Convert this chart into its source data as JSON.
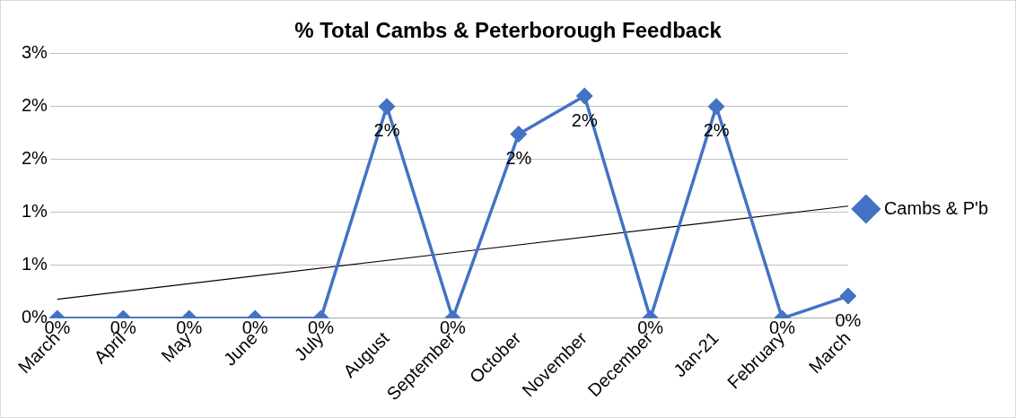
{
  "chart_data": {
    "type": "line",
    "title": "% Total Cambs & Peterborough Feedback",
    "categories": [
      "March",
      "April",
      "May",
      "June",
      "July",
      "August",
      "September",
      "October",
      "November",
      "December",
      "Jan-21",
      "February",
      "March"
    ],
    "series": [
      {
        "name": "Cambs & P'b",
        "color": "#4472c4",
        "marker": "diamond",
        "values": [
          0,
          0,
          0,
          0,
          0,
          2.0,
          0,
          1.74,
          2.1,
          0,
          2.0,
          0,
          0.21
        ],
        "value_labels": [
          "0%",
          "0%",
          "0%",
          "0%",
          "0%",
          "2%",
          "0%",
          "2%",
          "2%",
          "0%",
          "2%",
          "0%",
          "0%"
        ]
      },
      {
        "type": "line",
        "color": "#000000",
        "marker": "none",
        "values": [
          0.18,
          null,
          null,
          null,
          null,
          null,
          null,
          null,
          null,
          null,
          null,
          null,
          1.06
        ]
      }
    ],
    "ylim": [
      0,
      2.5
    ],
    "yticks": [
      {
        "value": 0,
        "label": "0%"
      },
      {
        "value": 0.5,
        "label": "1%"
      },
      {
        "value": 1,
        "label": "1%"
      },
      {
        "value": 1.5,
        "label": "2%"
      },
      {
        "value": 2,
        "label": "2%"
      },
      {
        "value": 2.5,
        "label": "3%"
      }
    ],
    "grid": "y",
    "legend": "right"
  }
}
